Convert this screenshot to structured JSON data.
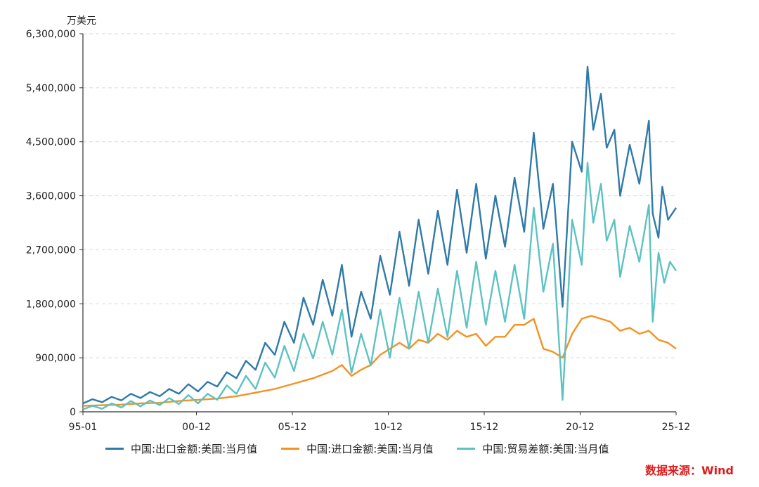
{
  "chart_data": {
    "type": "line",
    "unit_label": "万美元",
    "ylim": [
      0,
      6300000
    ],
    "yticks": [
      "0",
      "900,000",
      "1,800,000",
      "2,700,000",
      "3,600,000",
      "4,500,000",
      "5,400,000",
      "6,300,000"
    ],
    "ytick_values": [
      0,
      900000,
      1800000,
      2700000,
      3600000,
      4500000,
      5400000,
      6300000
    ],
    "xticks": [
      "95-01",
      "00-12",
      "05-12",
      "10-12",
      "15-12",
      "20-12",
      "25-12"
    ],
    "xtick_values": [
      1995.0,
      2000.917,
      2005.917,
      2010.917,
      2015.917,
      2020.917,
      2025.917
    ],
    "xlim": [
      1995.0,
      2025.917
    ],
    "grid": "horizontal-dashed",
    "legend_position": "bottom",
    "series": [
      {
        "name": "中国:出口金额:美国:当月值",
        "color": "#2e7aa8",
        "points": [
          [
            1995.0,
            140000
          ],
          [
            1995.5,
            210000
          ],
          [
            1996.0,
            160000
          ],
          [
            1996.5,
            250000
          ],
          [
            1997.0,
            190000
          ],
          [
            1997.5,
            300000
          ],
          [
            1998.0,
            230000
          ],
          [
            1998.5,
            330000
          ],
          [
            1999.0,
            260000
          ],
          [
            1999.5,
            380000
          ],
          [
            2000.0,
            300000
          ],
          [
            2000.5,
            460000
          ],
          [
            2001.0,
            340000
          ],
          [
            2001.5,
            500000
          ],
          [
            2002.0,
            420000
          ],
          [
            2002.5,
            660000
          ],
          [
            2003.0,
            560000
          ],
          [
            2003.5,
            850000
          ],
          [
            2004.0,
            700000
          ],
          [
            2004.5,
            1150000
          ],
          [
            2005.0,
            950000
          ],
          [
            2005.5,
            1500000
          ],
          [
            2006.0,
            1150000
          ],
          [
            2006.5,
            1900000
          ],
          [
            2007.0,
            1450000
          ],
          [
            2007.5,
            2200000
          ],
          [
            2008.0,
            1600000
          ],
          [
            2008.5,
            2450000
          ],
          [
            2009.0,
            1250000
          ],
          [
            2009.5,
            2000000
          ],
          [
            2010.0,
            1550000
          ],
          [
            2010.5,
            2600000
          ],
          [
            2011.0,
            1950000
          ],
          [
            2011.5,
            3000000
          ],
          [
            2012.0,
            2100000
          ],
          [
            2012.5,
            3200000
          ],
          [
            2013.0,
            2300000
          ],
          [
            2013.5,
            3350000
          ],
          [
            2014.0,
            2450000
          ],
          [
            2014.5,
            3700000
          ],
          [
            2015.0,
            2650000
          ],
          [
            2015.5,
            3800000
          ],
          [
            2016.0,
            2550000
          ],
          [
            2016.5,
            3600000
          ],
          [
            2017.0,
            2750000
          ],
          [
            2017.5,
            3900000
          ],
          [
            2018.0,
            3000000
          ],
          [
            2018.5,
            4650000
          ],
          [
            2019.0,
            3050000
          ],
          [
            2019.5,
            3800000
          ],
          [
            2020.0,
            1750000
          ],
          [
            2020.5,
            4500000
          ],
          [
            2021.0,
            4000000
          ],
          [
            2021.3,
            5750000
          ],
          [
            2021.6,
            4700000
          ],
          [
            2022.0,
            5300000
          ],
          [
            2022.3,
            4400000
          ],
          [
            2022.7,
            4700000
          ],
          [
            2023.0,
            3600000
          ],
          [
            2023.5,
            4450000
          ],
          [
            2024.0,
            3800000
          ],
          [
            2024.5,
            4850000
          ],
          [
            2024.7,
            3300000
          ],
          [
            2025.0,
            2900000
          ],
          [
            2025.2,
            3750000
          ],
          [
            2025.5,
            3200000
          ],
          [
            2025.917,
            3400000
          ]
        ]
      },
      {
        "name": "中国:进口金额:美国:当月值",
        "color": "#f39223",
        "points": [
          [
            1995.0,
            100000
          ],
          [
            1996.0,
            110000
          ],
          [
            1997.0,
            120000
          ],
          [
            1998.0,
            140000
          ],
          [
            1999.0,
            150000
          ],
          [
            2000.0,
            180000
          ],
          [
            2001.0,
            200000
          ],
          [
            2002.0,
            220000
          ],
          [
            2003.0,
            260000
          ],
          [
            2004.0,
            320000
          ],
          [
            2005.0,
            380000
          ],
          [
            2006.0,
            470000
          ],
          [
            2007.0,
            560000
          ],
          [
            2008.0,
            680000
          ],
          [
            2008.5,
            780000
          ],
          [
            2009.0,
            600000
          ],
          [
            2009.5,
            700000
          ],
          [
            2010.0,
            780000
          ],
          [
            2010.5,
            950000
          ],
          [
            2011.0,
            1050000
          ],
          [
            2011.5,
            1150000
          ],
          [
            2012.0,
            1050000
          ],
          [
            2012.5,
            1200000
          ],
          [
            2013.0,
            1150000
          ],
          [
            2013.5,
            1300000
          ],
          [
            2014.0,
            1200000
          ],
          [
            2014.5,
            1350000
          ],
          [
            2015.0,
            1250000
          ],
          [
            2015.5,
            1300000
          ],
          [
            2016.0,
            1100000
          ],
          [
            2016.5,
            1250000
          ],
          [
            2017.0,
            1250000
          ],
          [
            2017.5,
            1450000
          ],
          [
            2018.0,
            1450000
          ],
          [
            2018.5,
            1550000
          ],
          [
            2019.0,
            1050000
          ],
          [
            2019.5,
            1000000
          ],
          [
            2020.0,
            900000
          ],
          [
            2020.5,
            1300000
          ],
          [
            2021.0,
            1550000
          ],
          [
            2021.5,
            1600000
          ],
          [
            2022.0,
            1550000
          ],
          [
            2022.5,
            1500000
          ],
          [
            2023.0,
            1350000
          ],
          [
            2023.5,
            1400000
          ],
          [
            2024.0,
            1300000
          ],
          [
            2024.5,
            1350000
          ],
          [
            2025.0,
            1200000
          ],
          [
            2025.5,
            1150000
          ],
          [
            2025.917,
            1050000
          ]
        ]
      },
      {
        "name": "中国:贸易差额:美国:当月值",
        "color": "#5dc2c2",
        "points": [
          [
            1995.0,
            40000
          ],
          [
            1995.5,
            100000
          ],
          [
            1996.0,
            50000
          ],
          [
            1996.5,
            140000
          ],
          [
            1997.0,
            70000
          ],
          [
            1997.5,
            180000
          ],
          [
            1998.0,
            90000
          ],
          [
            1998.5,
            190000
          ],
          [
            1999.0,
            110000
          ],
          [
            1999.5,
            230000
          ],
          [
            2000.0,
            130000
          ],
          [
            2000.5,
            280000
          ],
          [
            2001.0,
            140000
          ],
          [
            2001.5,
            300000
          ],
          [
            2002.0,
            200000
          ],
          [
            2002.5,
            440000
          ],
          [
            2003.0,
            300000
          ],
          [
            2003.5,
            600000
          ],
          [
            2004.0,
            380000
          ],
          [
            2004.5,
            820000
          ],
          [
            2005.0,
            570000
          ],
          [
            2005.5,
            1100000
          ],
          [
            2006.0,
            680000
          ],
          [
            2006.5,
            1300000
          ],
          [
            2007.0,
            890000
          ],
          [
            2007.5,
            1500000
          ],
          [
            2008.0,
            950000
          ],
          [
            2008.5,
            1700000
          ],
          [
            2009.0,
            650000
          ],
          [
            2009.5,
            1300000
          ],
          [
            2010.0,
            770000
          ],
          [
            2010.5,
            1700000
          ],
          [
            2011.0,
            900000
          ],
          [
            2011.5,
            1900000
          ],
          [
            2012.0,
            1050000
          ],
          [
            2012.5,
            2000000
          ],
          [
            2013.0,
            1150000
          ],
          [
            2013.5,
            2050000
          ],
          [
            2014.0,
            1250000
          ],
          [
            2014.5,
            2350000
          ],
          [
            2015.0,
            1400000
          ],
          [
            2015.5,
            2500000
          ],
          [
            2016.0,
            1450000
          ],
          [
            2016.5,
            2350000
          ],
          [
            2017.0,
            1500000
          ],
          [
            2017.5,
            2450000
          ],
          [
            2018.0,
            1550000
          ],
          [
            2018.5,
            3400000
          ],
          [
            2019.0,
            2000000
          ],
          [
            2019.5,
            2800000
          ],
          [
            2020.0,
            200000
          ],
          [
            2020.5,
            3200000
          ],
          [
            2021.0,
            2450000
          ],
          [
            2021.3,
            4150000
          ],
          [
            2021.6,
            3150000
          ],
          [
            2022.0,
            3800000
          ],
          [
            2022.3,
            2850000
          ],
          [
            2022.7,
            3200000
          ],
          [
            2023.0,
            2250000
          ],
          [
            2023.5,
            3100000
          ],
          [
            2024.0,
            2500000
          ],
          [
            2024.5,
            3450000
          ],
          [
            2024.7,
            1500000
          ],
          [
            2025.0,
            2650000
          ],
          [
            2025.3,
            2150000
          ],
          [
            2025.6,
            2500000
          ],
          [
            2025.917,
            2350000
          ]
        ]
      }
    ]
  },
  "legend": {
    "export": "中国:出口金额:美国:当月值",
    "import": "中国:进口金额:美国:当月值",
    "balance": "中国:贸易差额:美国:当月值"
  },
  "source_label": "数据来源：Wind",
  "colors": {
    "export": "#2e7aa8",
    "import": "#f39223",
    "balance": "#5dc2c2",
    "source": "#e01b1b"
  }
}
